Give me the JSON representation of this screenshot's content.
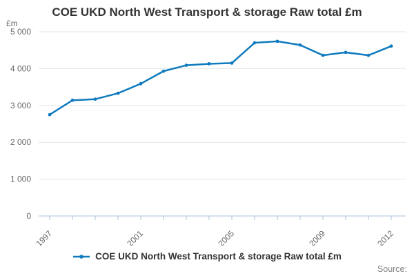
{
  "header": {
    "title": "COE UKD North West Transport & storage Raw total £m"
  },
  "chart_data": {
    "type": "line",
    "title": "COE UKD North West Transport & storage Raw total £m",
    "y_unit": "£m",
    "x": [
      1997,
      1998,
      1999,
      2000,
      2001,
      2002,
      2003,
      2004,
      2005,
      2006,
      2007,
      2008,
      2009,
      2010,
      2011,
      2012
    ],
    "series": [
      {
        "name": "COE UKD North West Transport & storage Raw total £m",
        "values": [
          2750,
          3140,
          3170,
          3330,
          3590,
          3930,
          4090,
          4130,
          4150,
          4700,
          4740,
          4640,
          4360,
          4440,
          4360,
          4610
        ]
      }
    ],
    "ylim": [
      0,
      5000
    ],
    "yticks": [
      0,
      1000,
      2000,
      3000,
      4000,
      5000
    ],
    "ytick_labels": [
      "0",
      "1 000",
      "2 000",
      "3 000",
      "4 000",
      "5 000"
    ],
    "xticks_labelled": [
      "1997",
      "2001",
      "2005",
      "2009",
      "2012"
    ],
    "grid": true,
    "legend_position": "bottom"
  },
  "legend": {
    "label": "COE UKD North West Transport & storage Raw total £m"
  },
  "footer": {
    "source_label": "Source:"
  },
  "colors": {
    "line": "#0f7bbe",
    "grid": "#e6e6e6",
    "axis": "#aec0d8",
    "tick_label": "#666666",
    "title": "#333333",
    "legend_text": "#333333",
    "source_text": "#808080",
    "background": "#ffffff"
  }
}
